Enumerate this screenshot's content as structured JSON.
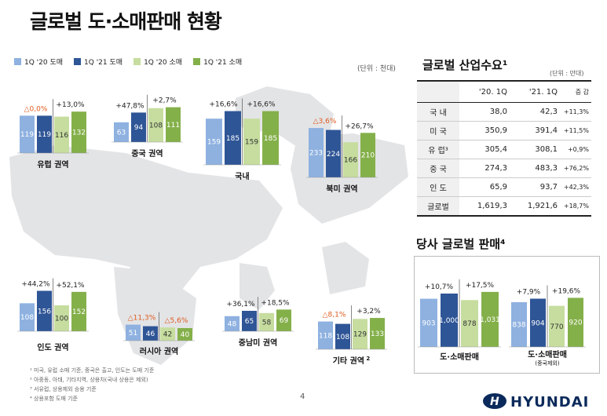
{
  "page": {
    "title": "글로벌 도·소매판매 현황",
    "unit_left": "(단위 : 천대)",
    "page_number": "4",
    "footnotes": [
      "¹ 미국, 유럽 소매 기준, 중국은 출고, 인도는 도매 기준",
      "² 아중동, 아태, 기타지역, 상용차(국내 상용은 제외)",
      "³ 서유럽, 상용제외 승용 기준",
      "⁴ 상용포함 도매 기준"
    ],
    "logo_text": "HYUNDAI"
  },
  "legend": [
    {
      "label": "1Q '20 도매",
      "color": "#8EB1E0"
    },
    {
      "label": "1Q '21 도매",
      "color": "#2E5596"
    },
    {
      "label": "1Q '20 소매",
      "color": "#C6DD9F"
    },
    {
      "label": "1Q '21 소매",
      "color": "#84B04A"
    }
  ],
  "colors": {
    "down_pct": "#E05A1E",
    "up_pct": "#222222"
  },
  "chart_data": [
    {
      "type": "bar",
      "title": "유럽 권역",
      "categories": [
        "1Q '20 도매",
        "1Q '21 도매",
        "1Q '20 소매",
        "1Q '21 소매"
      ],
      "values": [
        119,
        119,
        116,
        132
      ],
      "value_labels": [
        "119",
        "119",
        "116",
        "132"
      ],
      "wholesale_change": "△0,0%",
      "retail_change": "+13,0%"
    },
    {
      "type": "bar",
      "title": "중국 권역",
      "categories": [
        "1Q '20 도매",
        "1Q '21 도매",
        "1Q '20 소매",
        "1Q '21 소매"
      ],
      "values": [
        63,
        94,
        108,
        111
      ],
      "value_labels": [
        "63",
        "94",
        "108",
        "111"
      ],
      "wholesale_change": "+47,8%",
      "retail_change": "+2,7%"
    },
    {
      "type": "bar",
      "title": "국내",
      "categories": [
        "1Q '20 도매",
        "1Q '21 도매",
        "1Q '20 소매",
        "1Q '21 소매"
      ],
      "values": [
        159,
        185,
        159,
        185
      ],
      "value_labels": [
        "159",
        "185",
        "159",
        "185"
      ],
      "wholesale_change": "+16,6%",
      "retail_change": "+16,6%"
    },
    {
      "type": "bar",
      "title": "북미 권역",
      "categories": [
        "1Q '20 도매",
        "1Q '21 도매",
        "1Q '20 소매",
        "1Q '21 소매"
      ],
      "values": [
        233,
        224,
        166,
        210
      ],
      "value_labels": [
        "233",
        "224",
        "166",
        "210"
      ],
      "wholesale_change": "△3,6%",
      "retail_change": "+26,7%"
    },
    {
      "type": "bar",
      "title": "인도 권역",
      "categories": [
        "1Q '20 도매",
        "1Q '21 도매",
        "1Q '20 소매",
        "1Q '21 소매"
      ],
      "values": [
        108,
        156,
        100,
        152
      ],
      "value_labels": [
        "108",
        "156",
        "100",
        "152"
      ],
      "wholesale_change": "+44,2%",
      "retail_change": "+52,1%"
    },
    {
      "type": "bar",
      "title": "러시아 권역",
      "categories": [
        "1Q '20 도매",
        "1Q '21 도매",
        "1Q '20 소매",
        "1Q '21 소매"
      ],
      "values": [
        51,
        46,
        42,
        40
      ],
      "value_labels": [
        "51",
        "46",
        "42",
        "40"
      ],
      "wholesale_change": "△11,3%",
      "retail_change": "△5,6%"
    },
    {
      "type": "bar",
      "title": "중남미 권역",
      "categories": [
        "1Q '20 도매",
        "1Q '21 도매",
        "1Q '20 소매",
        "1Q '21 소매"
      ],
      "values": [
        48,
        65,
        58,
        69
      ],
      "value_labels": [
        "48",
        "65",
        "58",
        "69"
      ],
      "wholesale_change": "+36,1%",
      "retail_change": "+18,5%"
    },
    {
      "type": "bar",
      "title": "기타 권역",
      "title_sup": "2",
      "categories": [
        "1Q '20 도매",
        "1Q '21 도매",
        "1Q '20 소매",
        "1Q '21 소매"
      ],
      "values": [
        118,
        108,
        129,
        133
      ],
      "value_labels": [
        "118",
        "108",
        "129",
        "133"
      ],
      "wholesale_change": "△8,1%",
      "retail_change": "+3,2%"
    },
    {
      "type": "bar",
      "title": "도·소매판매",
      "categories": [
        "1Q '20 도매",
        "1Q '21 도매",
        "1Q '20 소매",
        "1Q '21 소매"
      ],
      "values": [
        903,
        1000,
        878,
        1031
      ],
      "value_labels": [
        "903",
        "1,000",
        "878",
        "1,031"
      ],
      "wholesale_change": "+10,7%",
      "retail_change": "+17,5%"
    },
    {
      "type": "bar",
      "title": "도·소매판매",
      "subtitle": "(중국제외)",
      "categories": [
        "1Q '20 도매",
        "1Q '21 도매",
        "1Q '20 소매",
        "1Q '21 소매"
      ],
      "values": [
        838,
        904,
        770,
        920
      ],
      "value_labels": [
        "838",
        "904",
        "770",
        "920"
      ],
      "wholesale_change": "+7,9%",
      "retail_change": "+19,6%"
    }
  ],
  "industry_table": {
    "title": "글로벌 산업수요¹",
    "unit": "(단위 : 만대)",
    "headers": [
      "",
      "'20. 1Q",
      "'21. 1Q",
      "증 감"
    ],
    "rows": [
      [
        "국 내",
        "38,0",
        "42,3",
        "+11,3%"
      ],
      [
        "미 국",
        "350,9",
        "391,4",
        "+11,5%"
      ],
      [
        "유 럽³",
        "305,4",
        "308,1",
        "+0,9%"
      ],
      [
        "중 국",
        "274,3",
        "483,3",
        "+76,2%"
      ],
      [
        "인 도",
        "65,9",
        "93,7",
        "+42,3%"
      ],
      [
        "글로벌",
        "1,619,3",
        "1,921,6",
        "+18,7%"
      ]
    ]
  },
  "hyundai_box": {
    "title": "당사 글로벌 판매⁴"
  }
}
